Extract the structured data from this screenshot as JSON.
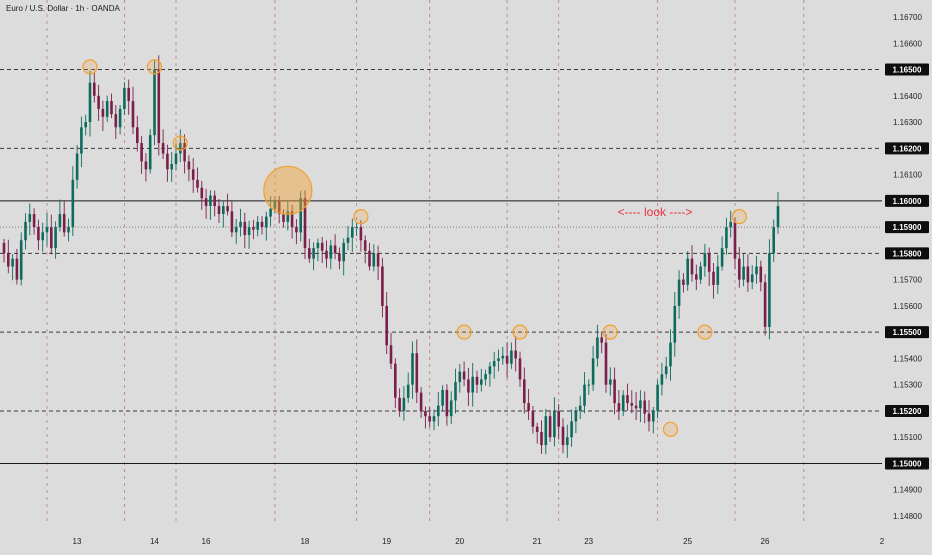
{
  "chart_data": {
    "type": "candlestick",
    "title": "Euro / U.S. Dollar · 1h · OANDA",
    "colors": {
      "up": "#0d6b5e",
      "down": "#7a1f4a",
      "key_level": "#1a1a1a",
      "dashed_level": "#3a3a3a",
      "annotation": "#e8323c",
      "highlight": "#f0a030"
    },
    "ylim": [
      1.1475,
      1.1676
    ],
    "y_ticks": [
      "1.16700",
      "1.16600",
      "1.16500",
      "1.16400",
      "1.16300",
      "1.16200",
      "1.16100",
      "1.16000",
      "1.15900",
      "1.15800",
      "1.15700",
      "1.15600",
      "1.15500",
      "1.15400",
      "1.15300",
      "1.15200",
      "1.15100",
      "1.15000",
      "1.14900",
      "1.14800"
    ],
    "boxed_levels": [
      "1.16500",
      "1.16200",
      "1.16000",
      "1.15900",
      "1.15800",
      "1.15500",
      "1.15200",
      "1.15000"
    ],
    "x_ticks": [
      "13",
      "14",
      "16",
      "18",
      "19",
      "20",
      "21",
      "23",
      "25",
      "26",
      "2"
    ],
    "x_tick_bars": [
      10,
      28,
      40,
      63,
      82,
      99,
      117,
      129,
      152,
      170,
      186
    ],
    "levels": [
      {
        "price": 1.165,
        "style": "dashed"
      },
      {
        "price": 1.162,
        "style": "dashed"
      },
      {
        "price": 1.16,
        "style": "solid"
      },
      {
        "price": 1.159,
        "style": "dotted"
      },
      {
        "price": 1.158,
        "style": "dashed"
      },
      {
        "price": 1.155,
        "style": "dashed"
      },
      {
        "price": 1.152,
        "style": "dashed"
      },
      {
        "price": 1.15,
        "style": "solid"
      }
    ],
    "annotations": [
      {
        "text": "<---- look ---->",
        "price": 1.1593
      }
    ],
    "highlights": [
      {
        "bar": 20,
        "price": 1.1651
      },
      {
        "bar": 35,
        "price": 1.1651
      },
      {
        "bar": 41,
        "price": 1.1622
      },
      {
        "bar": 66,
        "price": 1.1604,
        "large": true
      },
      {
        "bar": 83,
        "price": 1.1594
      },
      {
        "bar": 107,
        "price": 1.155
      },
      {
        "bar": 120,
        "price": 1.155
      },
      {
        "bar": 141,
        "price": 1.155
      },
      {
        "bar": 155,
        "price": 1.1513
      },
      {
        "bar": 163,
        "price": 1.155
      },
      {
        "bar": 171,
        "price": 1.1594
      }
    ],
    "close": [
      1.158,
      1.1575,
      1.1578,
      1.157,
      1.1585,
      1.1592,
      1.1595,
      1.159,
      1.1585,
      1.1588,
      1.159,
      1.1582,
      1.159,
      1.1595,
      1.1588,
      1.159,
      1.1608,
      1.1618,
      1.1628,
      1.163,
      1.1645,
      1.164,
      1.1635,
      1.1632,
      1.1638,
      1.1633,
      1.1628,
      1.1635,
      1.1643,
      1.1638,
      1.1628,
      1.1622,
      1.1615,
      1.1612,
      1.1625,
      1.165,
      1.1622,
      1.1618,
      1.1612,
      1.1614,
      1.1618,
      1.1622,
      1.1615,
      1.1612,
      1.1608,
      1.1605,
      1.1601,
      1.1598,
      1.1602,
      1.1598,
      1.1595,
      1.1598,
      1.1596,
      1.1588,
      1.159,
      1.1592,
      1.1587,
      1.159,
      1.1589,
      1.1592,
      1.159,
      1.1594,
      1.1597,
      1.16,
      1.1595,
      1.1592,
      1.1596,
      1.159,
      1.1588,
      1.1601,
      1.1582,
      1.1578,
      1.1582,
      1.1584,
      1.1581,
      1.1578,
      1.1583,
      1.158,
      1.1577,
      1.1584,
      1.1586,
      1.159,
      1.159,
      1.1585,
      1.1581,
      1.1575,
      1.158,
      1.1575,
      1.156,
      1.1545,
      1.1538,
      1.1525,
      1.152,
      1.1525,
      1.153,
      1.1542,
      1.1527,
      1.152,
      1.1518,
      1.1516,
      1.1518,
      1.1522,
      1.1528,
      1.1518,
      1.1524,
      1.1531,
      1.1535,
      1.1532,
      1.1527,
      1.1533,
      1.153,
      1.1532,
      1.1534,
      1.1537,
      1.1539,
      1.154,
      1.1541,
      1.1538,
      1.1543,
      1.154,
      1.1532,
      1.1523,
      1.152,
      1.1514,
      1.1512,
      1.1507,
      1.1518,
      1.151,
      1.152,
      1.1514,
      1.1507,
      1.151,
      1.1516,
      1.152,
      1.1522,
      1.153,
      1.153,
      1.154,
      1.1548,
      1.1546,
      1.153,
      1.1532,
      1.1523,
      1.152,
      1.1526,
      1.1523,
      1.1522,
      1.1521,
      1.1524,
      1.1519,
      1.1516,
      1.152,
      1.153,
      1.1534,
      1.1537,
      1.1546,
      1.156,
      1.157,
      1.1568,
      1.1578,
      1.1572,
      1.157,
      1.1575,
      1.158,
      1.1573,
      1.1568,
      1.1575,
      1.1582,
      1.159,
      1.1592,
      1.1578,
      1.157,
      1.1575,
      1.1569,
      1.1572,
      1.1575,
      1.1569,
      1.1552,
      1.158,
      1.159,
      1.1598
    ]
  }
}
